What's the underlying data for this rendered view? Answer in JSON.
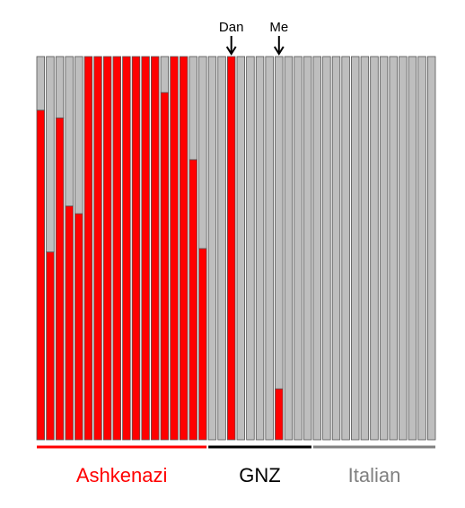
{
  "chart_data": {
    "type": "bar",
    "stacked": true,
    "ylim": [
      0,
      1
    ],
    "grid": false,
    "colors": {
      "red_component": "#ff0000",
      "gray_component": "#bebebe",
      "bar_outline": "#555555"
    },
    "series": [
      {
        "color": "#ff0000",
        "values": [
          0.86,
          0.49,
          0.84,
          0.61,
          0.59,
          1,
          1,
          1,
          1,
          1,
          1,
          1,
          1,
          0.906,
          1,
          1,
          0.731,
          0.499,
          0,
          0,
          1,
          0,
          0,
          0,
          0,
          0.133,
          0,
          0,
          0,
          0,
          0,
          0,
          0,
          0,
          0,
          0,
          0,
          0,
          0,
          0,
          0,
          0
        ]
      },
      {
        "color": "#bebebe",
        "values": [
          0.14,
          0.51,
          0.16,
          0.39,
          0.41,
          0,
          0,
          0,
          0,
          0,
          0,
          0,
          0,
          0.094,
          0,
          0,
          0.269,
          0.501,
          1,
          1,
          0,
          1,
          1,
          1,
          1,
          0.867,
          1,
          1,
          1,
          1,
          1,
          1,
          1,
          1,
          1,
          1,
          1,
          1,
          1,
          1,
          1,
          1
        ]
      }
    ],
    "groups": [
      {
        "label": "Ashkenazi",
        "start": 0,
        "count": 18,
        "color": "#ff0000"
      },
      {
        "label": "GNZ",
        "start": 18,
        "count": 11,
        "color": "#000000"
      },
      {
        "label": "Italian",
        "start": 29,
        "count": 13,
        "color": "#808080"
      }
    ],
    "markers": [
      {
        "label": "Dan",
        "bar_index": 20
      },
      {
        "label": "Me",
        "bar_index": 25
      }
    ]
  }
}
